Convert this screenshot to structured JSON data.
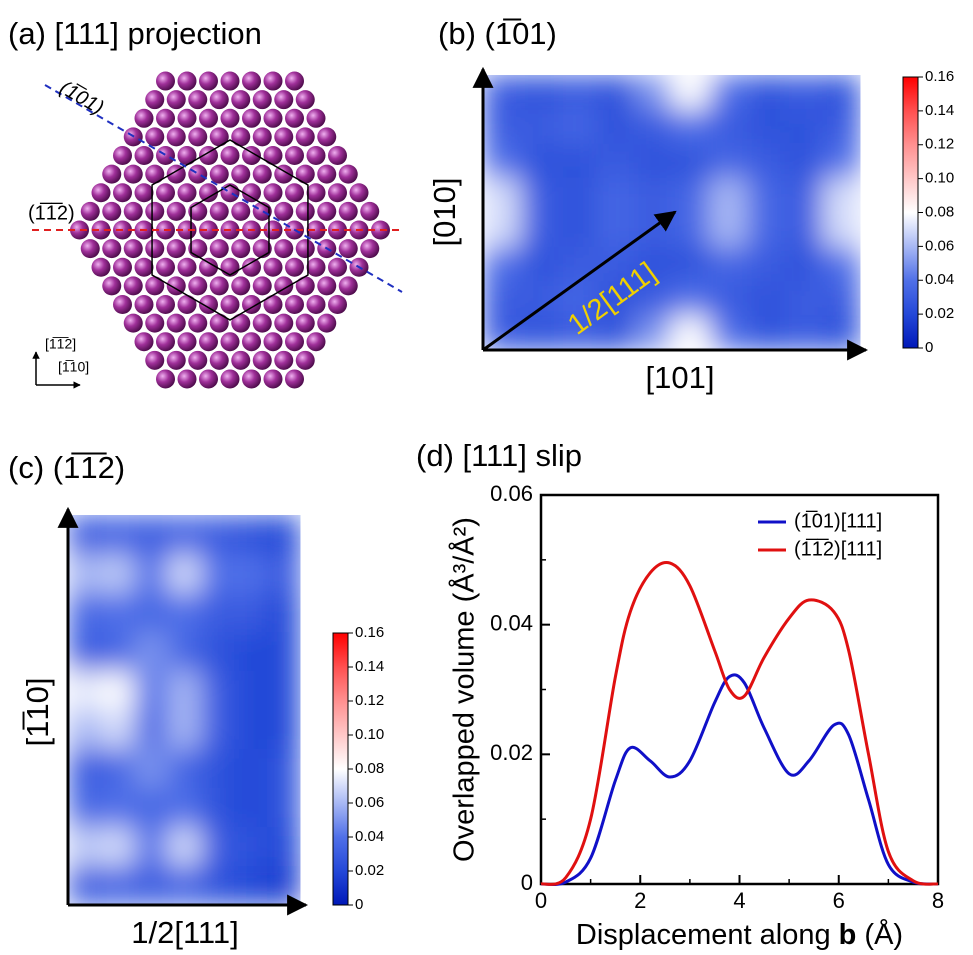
{
  "panel_a": {
    "title": "(a) [111] projection",
    "plane_labels": [
      "(1̅01)",
      "(1̅1̅2)"
    ],
    "direction_labels": [
      "[1̅1̅2]",
      "[1̅10]"
    ]
  },
  "chart_data": [
    {
      "type": "heatmap",
      "title": "(b) (1̅01)",
      "x_label": "[101]",
      "y_label": "[010]",
      "arrow_label": "1/2[111]",
      "clim": [
        0,
        0.16
      ],
      "cticks": [
        0,
        0.02,
        0.04,
        0.06,
        0.08,
        {
          "value": 0.1,
          "label": "0.10"
        },
        0.12,
        0.14,
        0.16
      ],
      "colormap": [
        "#0018b8",
        "#2448d8",
        "#5070e8",
        "#a8b8f4",
        "#ffffff",
        "#ffc8c8",
        "#ff9090",
        "#ff5050",
        "#ff0000"
      ],
      "values": [
        [
          0.03,
          0.025,
          0.03,
          0.025,
          0.05,
          0.08,
          0.04,
          0.025,
          0.03,
          0.025
        ],
        [
          0.03,
          0.03,
          0.035,
          0.025,
          0.03,
          0.04,
          0.03,
          0.025,
          0.025,
          0.03
        ],
        [
          0.04,
          0.025,
          0.025,
          0.03,
          0.025,
          0.025,
          0.035,
          0.03,
          0.025,
          0.04
        ],
        [
          0.07,
          0.03,
          0.025,
          0.035,
          0.03,
          0.035,
          0.06,
          0.035,
          0.03,
          0.07
        ],
        [
          0.07,
          0.03,
          0.025,
          0.035,
          0.03,
          0.035,
          0.06,
          0.035,
          0.03,
          0.07
        ],
        [
          0.04,
          0.025,
          0.03,
          0.03,
          0.025,
          0.025,
          0.035,
          0.03,
          0.025,
          0.04
        ],
        [
          0.03,
          0.03,
          0.035,
          0.025,
          0.03,
          0.04,
          0.03,
          0.025,
          0.03,
          0.03
        ],
        [
          0.03,
          0.025,
          0.03,
          0.025,
          0.05,
          0.08,
          0.04,
          0.025,
          0.03,
          0.025
        ]
      ]
    },
    {
      "type": "heatmap",
      "title": "(c) (1̅1̅2)",
      "x_label": "1/2[111]",
      "y_label": "[1̅10]",
      "clim": [
        0,
        0.16
      ],
      "cticks": [
        0,
        0.02,
        0.04,
        0.06,
        0.08,
        {
          "value": 0.1,
          "label": "0.10"
        },
        0.12,
        0.14,
        0.16
      ],
      "colormap": [
        "#0018b8",
        "#2448d8",
        "#5070e8",
        "#a8b8f4",
        "#ffffff",
        "#ffc8c8",
        "#ff9090",
        "#ff5050",
        "#ff0000"
      ],
      "values": [
        [
          0.03,
          0.035,
          0.03,
          0.035,
          0.03,
          0.025,
          0.02
        ],
        [
          0.06,
          0.065,
          0.04,
          0.07,
          0.04,
          0.04,
          0.03
        ],
        [
          0.035,
          0.04,
          0.035,
          0.04,
          0.03,
          0.03,
          0.02
        ],
        [
          0.03,
          0.035,
          0.05,
          0.035,
          0.025,
          0.02,
          0.02
        ],
        [
          0.075,
          0.08,
          0.04,
          0.06,
          0.03,
          0.02,
          0.02
        ],
        [
          0.06,
          0.07,
          0.035,
          0.06,
          0.03,
          0.02,
          0.02
        ],
        [
          0.03,
          0.035,
          0.05,
          0.035,
          0.025,
          0.02,
          0.025
        ],
        [
          0.035,
          0.04,
          0.035,
          0.04,
          0.025,
          0.02,
          0.025
        ],
        [
          0.065,
          0.07,
          0.04,
          0.07,
          0.03,
          0.025,
          0.02
        ],
        [
          0.03,
          0.035,
          0.03,
          0.035,
          0.025,
          0.02,
          0.015
        ]
      ]
    },
    {
      "type": "line",
      "title": "(d) [111] slip",
      "x_label_parts": [
        "Displacement along ",
        "b",
        " (Å)"
      ],
      "y_label": "Overlapped volume (Å³/Å²)",
      "xlim": [
        0,
        8
      ],
      "xticks": [
        0,
        2,
        4,
        6,
        8
      ],
      "xminorticks": [
        1,
        3,
        5,
        7
      ],
      "ylim": [
        0,
        0.06
      ],
      "yticks": [
        0,
        0.02,
        0.04,
        0.06
      ],
      "yminorticks": [
        0.01,
        0.03,
        0.05
      ],
      "legend": "upper right",
      "x": [
        0,
        0.5,
        1,
        1.5,
        1.8,
        2.2,
        2.6,
        3,
        3.5,
        3.8,
        4.1,
        4.5,
        5,
        5.4,
        5.9,
        6.2,
        6.6,
        7,
        7.5,
        8
      ],
      "series": [
        {
          "name": "(1̅01)[111]",
          "color": "#1010c8",
          "values": [
            0,
            0.0003,
            0.004,
            0.016,
            0.021,
            0.019,
            0.0165,
            0.019,
            0.028,
            0.032,
            0.031,
            0.024,
            0.017,
            0.019,
            0.0245,
            0.023,
            0.013,
            0.003,
            0.0003,
            0
          ]
        },
        {
          "name": "(1̅1̅2)[111]",
          "color": "#e01010",
          "values": [
            0,
            0.001,
            0.01,
            0.032,
            0.042,
            0.048,
            0.0495,
            0.046,
            0.036,
            0.03,
            0.029,
            0.035,
            0.041,
            0.0438,
            0.042,
            0.036,
            0.02,
            0.005,
            0.0005,
            0
          ]
        }
      ]
    }
  ]
}
